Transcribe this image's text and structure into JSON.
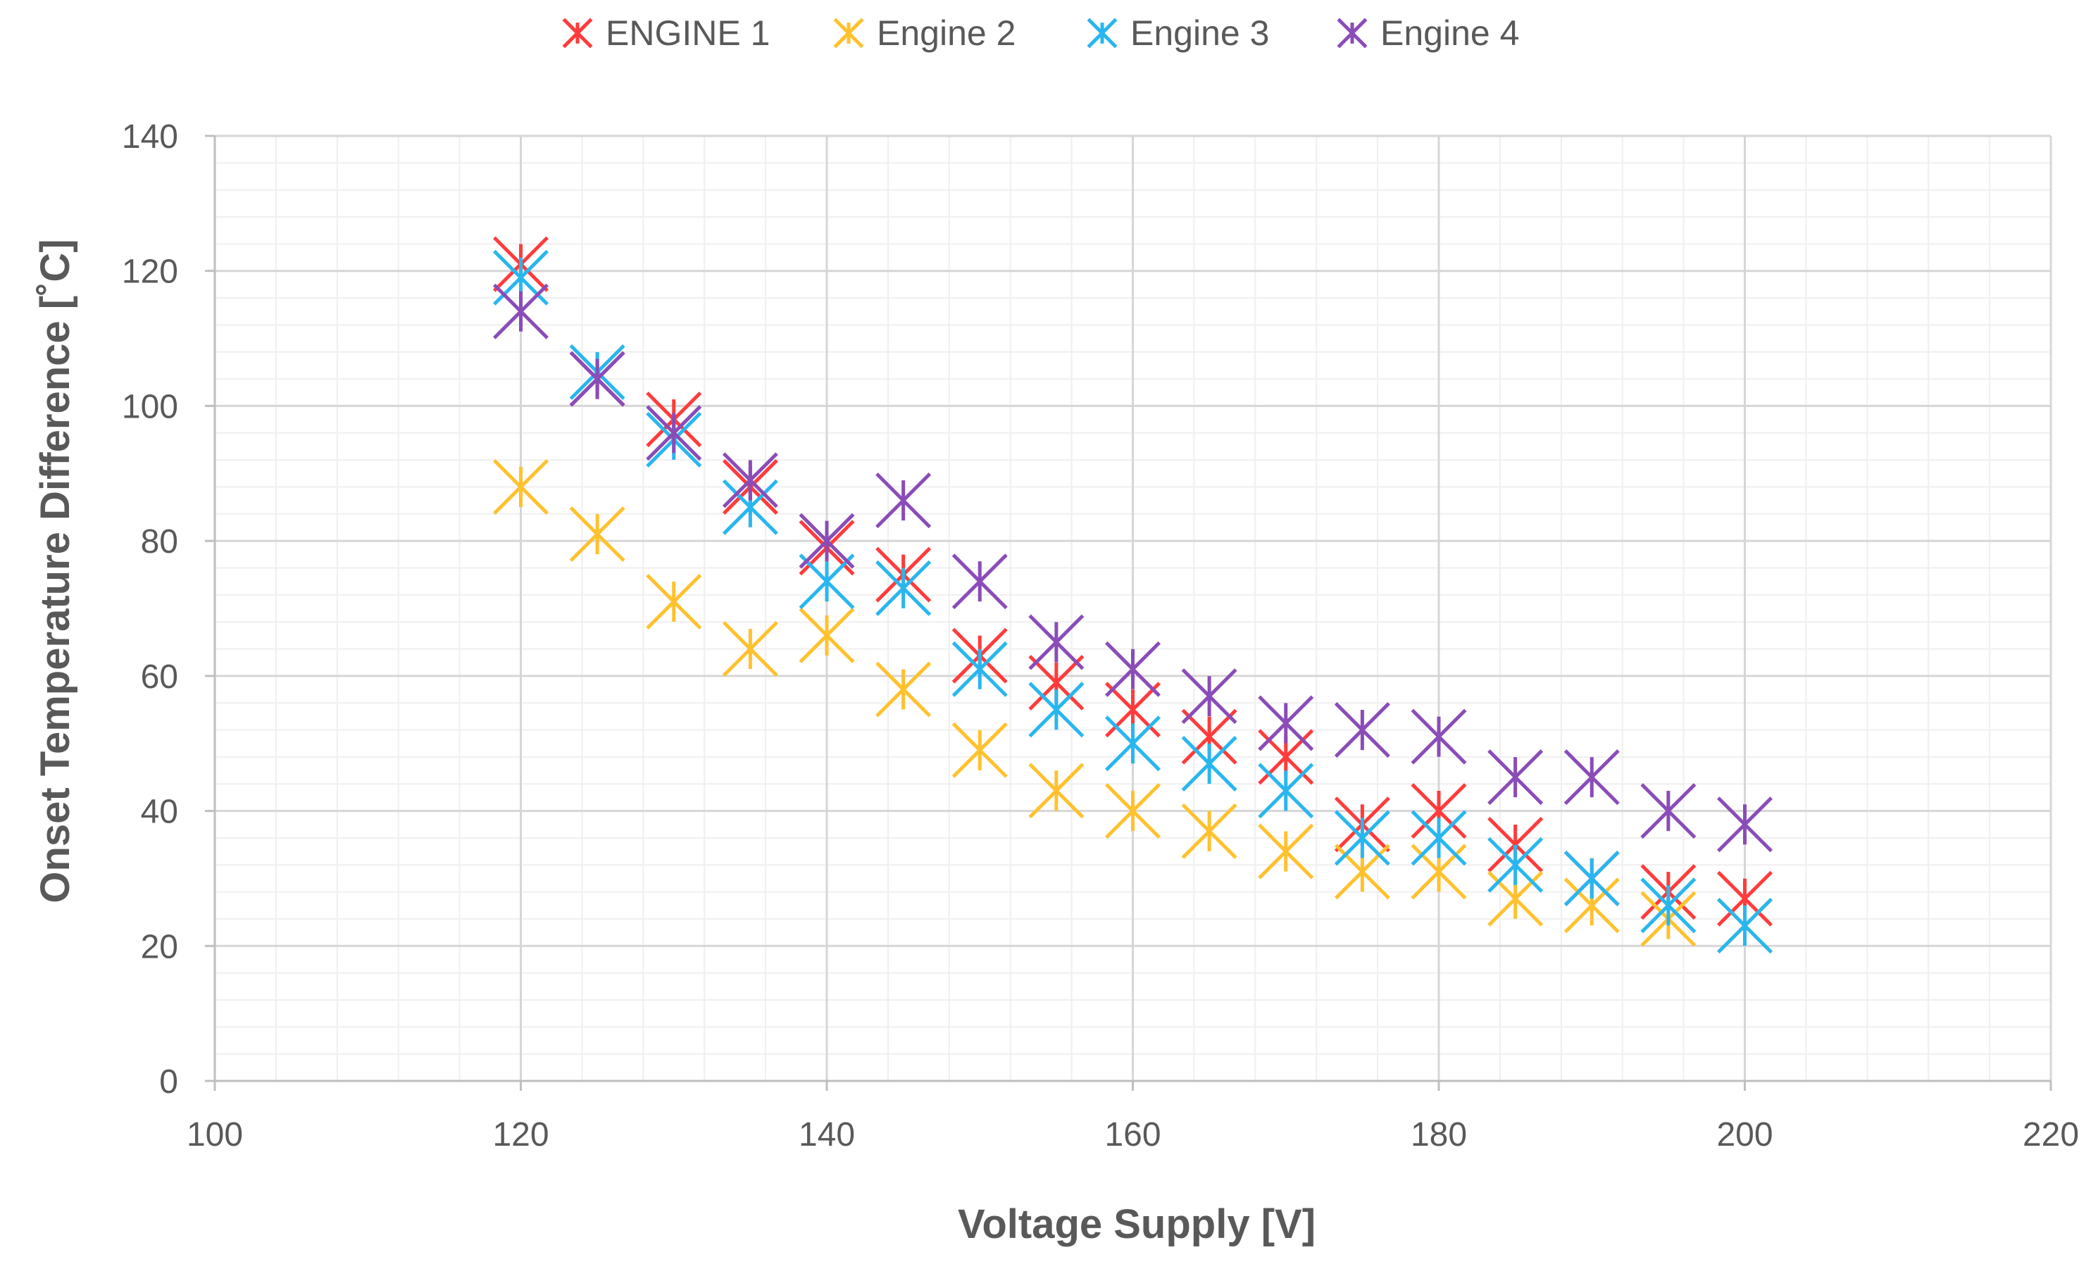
{
  "chart_data": {
    "type": "scatter",
    "title": "",
    "xlabel": "Voltage Supply [V]",
    "ylabel": "Onset Temperature  Difference [˚C]",
    "xlim": [
      100,
      220
    ],
    "ylim": [
      0,
      140
    ],
    "x_ticks": [
      "100",
      "120",
      "140",
      "160",
      "180",
      "200",
      "220"
    ],
    "y_ticks": [
      "0",
      "20",
      "40",
      "60",
      "80",
      "100",
      "120",
      "140"
    ],
    "grid": "major and minor",
    "legend_position": "top",
    "marker": "star",
    "x": [
      120,
      125,
      130,
      135,
      140,
      145,
      150,
      155,
      160,
      165,
      170,
      175,
      180,
      185,
      190,
      195,
      200
    ],
    "series": [
      {
        "name": "ENGINE 1",
        "color": "#ff3b3b",
        "values": [
          121,
          104,
          98,
          88,
          79,
          75,
          63,
          59,
          55,
          51,
          48,
          38,
          40,
          35,
          30,
          28,
          27
        ]
      },
      {
        "name": "Engine 2",
        "color": "#ffc12e",
        "values": [
          88,
          81,
          71,
          64,
          66,
          58,
          49,
          43,
          40,
          37,
          34,
          31,
          31,
          27,
          26,
          24,
          23
        ]
      },
      {
        "name": "Engine 3",
        "color": "#29b6ef",
        "values": [
          119,
          105,
          95,
          85,
          74,
          73,
          61,
          55,
          50,
          47,
          43,
          36,
          36,
          32,
          30,
          26,
          23
        ]
      },
      {
        "name": "Engine 4",
        "color": "#8a4cb8",
        "values": [
          114,
          104,
          96,
          89,
          80,
          86,
          74,
          65,
          61,
          57,
          53,
          52,
          51,
          45,
          45,
          40,
          38
        ]
      }
    ]
  }
}
